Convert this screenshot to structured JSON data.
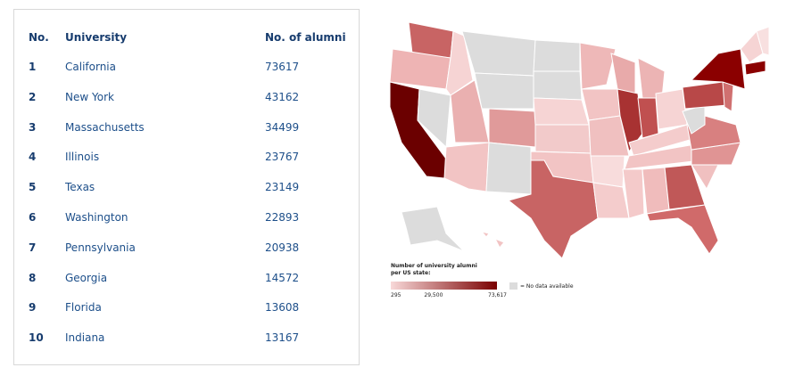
{
  "table": {
    "header": [
      "No.",
      "University",
      "No. of alumni"
    ],
    "rows": [
      [
        1,
        "California",
        73617
      ],
      [
        2,
        "New York",
        43162
      ],
      [
        3,
        "Massachusetts",
        34499
      ],
      [
        4,
        "Illinois",
        23767
      ],
      [
        5,
        "Texas",
        23149
      ],
      [
        6,
        "Washington",
        22893
      ],
      [
        7,
        "Pennsylvania",
        20938
      ],
      [
        8,
        "Georgia",
        14572
      ],
      [
        9,
        "Florida",
        13608
      ],
      [
        10,
        "Indiana",
        13167
      ]
    ]
  },
  "legend": {
    "title": [
      "Number of university alumni",
      "per US state:"
    ],
    "ticks": [
      295,
      {
        "value": 29500,
        "label": "29,500"
      },
      {
        "value": 73617,
        "label": "73,617"
      }
    ],
    "no_data": "= No data available"
  }
}
